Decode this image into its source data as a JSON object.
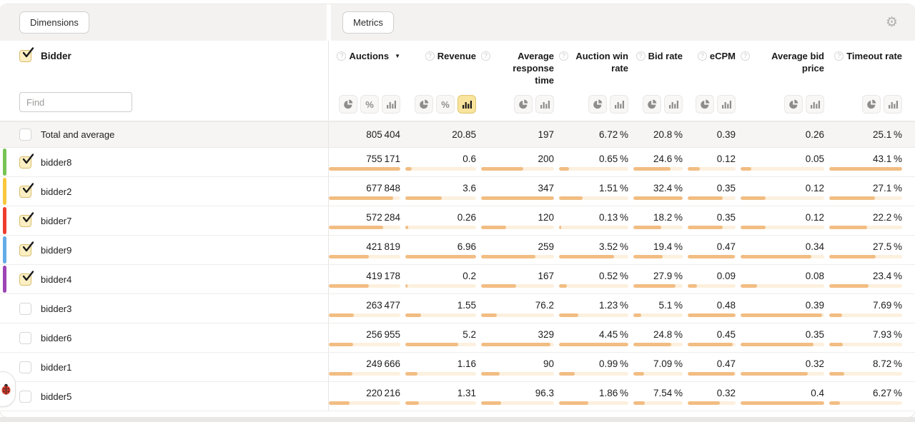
{
  "icons": {
    "question": "?",
    "gear": "⚙",
    "sort_desc": "▼",
    "percent": "%"
  },
  "toolbar": {
    "dimensions_label": "Dimensions",
    "metrics_label": "Metrics"
  },
  "dimensions": {
    "title": "Bidder",
    "title_checked": true,
    "find_placeholder": "Find"
  },
  "table": {
    "columns": [
      {
        "label": "Auctions",
        "sorted": "desc",
        "toggles": [
          "pie",
          "percent",
          "bars"
        ],
        "active_toggle": null
      },
      {
        "label": "Revenue",
        "sorted": null,
        "toggles": [
          "pie",
          "percent",
          "bars"
        ],
        "active_toggle": "bars"
      },
      {
        "label": "Average response time",
        "sorted": null,
        "toggles": [
          "pie",
          "bars"
        ],
        "active_toggle": null
      },
      {
        "label": "Auction win rate",
        "sorted": null,
        "toggles": [
          "pie",
          "bars"
        ],
        "active_toggle": null
      },
      {
        "label": "Bid rate",
        "sorted": null,
        "toggles": [
          "pie",
          "bars"
        ],
        "active_toggle": null
      },
      {
        "label": "eCPM",
        "sorted": null,
        "toggles": [
          "pie",
          "bars"
        ],
        "active_toggle": null
      },
      {
        "label": "Average bid price",
        "sorted": null,
        "toggles": [
          "pie",
          "bars"
        ],
        "active_toggle": null
      },
      {
        "label": "Timeout rate",
        "sorted": null,
        "toggles": [
          "pie",
          "bars"
        ],
        "active_toggle": null
      }
    ],
    "rows": [
      {
        "label": "Total and average",
        "total": true,
        "checked": false,
        "color": null,
        "cells": [
          {
            "v": "805 404"
          },
          {
            "v": "20.85"
          },
          {
            "v": "197"
          },
          {
            "v": "6.72 %"
          },
          {
            "v": "20.8 %"
          },
          {
            "v": "0.39"
          },
          {
            "v": "0.26"
          },
          {
            "v": "25.1 %"
          }
        ]
      },
      {
        "label": "bidder8",
        "total": false,
        "checked": true,
        "color": "#77c353",
        "cells": [
          {
            "v": "755 171",
            "bar": 100
          },
          {
            "v": "0.6",
            "bar": 8.6
          },
          {
            "v": "200",
            "bar": 57.6
          },
          {
            "v": "0.65 %",
            "bar": 14.6
          },
          {
            "v": "24.6 %",
            "bar": 75.9
          },
          {
            "v": "0.12",
            "bar": 25
          },
          {
            "v": "0.05",
            "bar": 12.5
          },
          {
            "v": "43.1 %",
            "bar": 100
          }
        ]
      },
      {
        "label": "bidder2",
        "total": false,
        "checked": true,
        "color": "#f9c73e",
        "cells": [
          {
            "v": "677 848",
            "bar": 89.8
          },
          {
            "v": "3.6",
            "bar": 51.7
          },
          {
            "v": "347",
            "bar": 100
          },
          {
            "v": "1.51 %",
            "bar": 33.9
          },
          {
            "v": "32.4 %",
            "bar": 100
          },
          {
            "v": "0.35",
            "bar": 72.9
          },
          {
            "v": "0.12",
            "bar": 30
          },
          {
            "v": "27.1 %",
            "bar": 62.9
          }
        ]
      },
      {
        "label": "bidder7",
        "total": false,
        "checked": true,
        "color": "#ee3d2f",
        "cells": [
          {
            "v": "572 284",
            "bar": 75.8
          },
          {
            "v": "0.26",
            "bar": 3.7
          },
          {
            "v": "120",
            "bar": 34.6
          },
          {
            "v": "0.13 %",
            "bar": 2.9
          },
          {
            "v": "18.2 %",
            "bar": 56.2
          },
          {
            "v": "0.35",
            "bar": 72.9
          },
          {
            "v": "0.12",
            "bar": 30
          },
          {
            "v": "22.2 %",
            "bar": 51.5
          }
        ]
      },
      {
        "label": "bidder9",
        "total": false,
        "checked": true,
        "color": "#64ace8",
        "cells": [
          {
            "v": "421 819",
            "bar": 55.9
          },
          {
            "v": "6.96",
            "bar": 100
          },
          {
            "v": "259",
            "bar": 74.6
          },
          {
            "v": "3.52 %",
            "bar": 79.1
          },
          {
            "v": "19.4 %",
            "bar": 59.9
          },
          {
            "v": "0.47",
            "bar": 97.9
          },
          {
            "v": "0.34",
            "bar": 85
          },
          {
            "v": "27.5 %",
            "bar": 63.8
          }
        ]
      },
      {
        "label": "bidder4",
        "total": false,
        "checked": true,
        "color": "#9d44b5",
        "cells": [
          {
            "v": "419 178",
            "bar": 55.5
          },
          {
            "v": "0.2",
            "bar": 2.9
          },
          {
            "v": "167",
            "bar": 48.1
          },
          {
            "v": "0.52 %",
            "bar": 11.7
          },
          {
            "v": "27.9 %",
            "bar": 86.1
          },
          {
            "v": "0.09",
            "bar": 18.8
          },
          {
            "v": "0.08",
            "bar": 20
          },
          {
            "v": "23.4 %",
            "bar": 54.3
          }
        ]
      },
      {
        "label": "bidder3",
        "total": false,
        "checked": false,
        "color": null,
        "cells": [
          {
            "v": "263 477",
            "bar": 34.9
          },
          {
            "v": "1.55",
            "bar": 22.3
          },
          {
            "v": "76.2",
            "bar": 22
          },
          {
            "v": "1.23 %",
            "bar": 27.6
          },
          {
            "v": "5.1 %",
            "bar": 15.7
          },
          {
            "v": "0.48",
            "bar": 100
          },
          {
            "v": "0.39",
            "bar": 97.5
          },
          {
            "v": "7.69 %",
            "bar": 17.8
          }
        ]
      },
      {
        "label": "bidder6",
        "total": false,
        "checked": false,
        "color": null,
        "cells": [
          {
            "v": "256 955",
            "bar": 34
          },
          {
            "v": "5.2",
            "bar": 74.7
          },
          {
            "v": "329",
            "bar": 94.8
          },
          {
            "v": "4.45 %",
            "bar": 100
          },
          {
            "v": "24.8 %",
            "bar": 76.5
          },
          {
            "v": "0.45",
            "bar": 93.8
          },
          {
            "v": "0.35",
            "bar": 87.5
          },
          {
            "v": "7.93 %",
            "bar": 18.4
          }
        ]
      },
      {
        "label": "bidder1",
        "total": false,
        "checked": false,
        "color": null,
        "cells": [
          {
            "v": "249 666",
            "bar": 33.1
          },
          {
            "v": "1.16",
            "bar": 16.7
          },
          {
            "v": "90",
            "bar": 25.9
          },
          {
            "v": "0.99 %",
            "bar": 22.2
          },
          {
            "v": "7.09 %",
            "bar": 21.9
          },
          {
            "v": "0.47",
            "bar": 97.9
          },
          {
            "v": "0.32",
            "bar": 80
          },
          {
            "v": "8.72 %",
            "bar": 20.2
          }
        ]
      },
      {
        "label": "bidder5",
        "total": false,
        "checked": false,
        "color": null,
        "cells": [
          {
            "v": "220 216",
            "bar": 29.2
          },
          {
            "v": "1.31",
            "bar": 18.8
          },
          {
            "v": "96.3",
            "bar": 27.8
          },
          {
            "v": "1.86 %",
            "bar": 41.8
          },
          {
            "v": "7.54 %",
            "bar": 23.3
          },
          {
            "v": "0.32",
            "bar": 66.7
          },
          {
            "v": "0.4",
            "bar": 100
          },
          {
            "v": "6.27 %",
            "bar": 14.5
          }
        ]
      }
    ]
  },
  "colors": {
    "bar_fill": "#f2bd83",
    "bar_track": "#fcf0de",
    "active_toggle_bg": "#f8e49c",
    "checked_checkbox_bg": "#fbefc3"
  }
}
